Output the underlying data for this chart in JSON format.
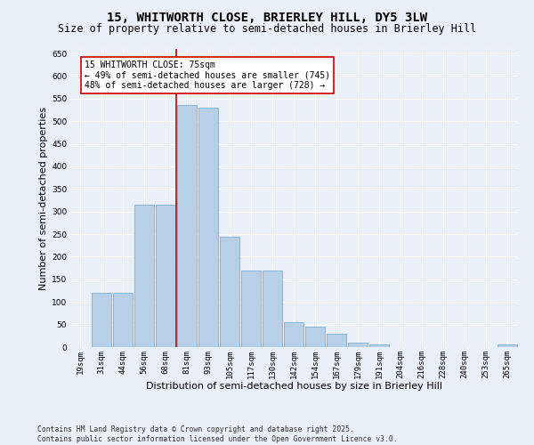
{
  "title": "15, WHITWORTH CLOSE, BRIERLEY HILL, DY5 3LW",
  "subtitle": "Size of property relative to semi-detached houses in Brierley Hill",
  "xlabel": "Distribution of semi-detached houses by size in Brierley Hill",
  "ylabel": "Number of semi-detached properties",
  "categories": [
    "19sqm",
    "31sqm",
    "44sqm",
    "56sqm",
    "68sqm",
    "81sqm",
    "93sqm",
    "105sqm",
    "117sqm",
    "130sqm",
    "142sqm",
    "154sqm",
    "167sqm",
    "179sqm",
    "191sqm",
    "204sqm",
    "216sqm",
    "228sqm",
    "240sqm",
    "253sqm",
    "265sqm"
  ],
  "values": [
    0,
    120,
    120,
    315,
    315,
    535,
    530,
    245,
    170,
    170,
    55,
    45,
    30,
    10,
    5,
    0,
    0,
    0,
    0,
    0,
    5
  ],
  "bar_color": "#b8cfe8",
  "bar_edge_color": "#7aadd4",
  "vline_pos": 4.5,
  "vline_color": "#cc0000",
  "annotation_text": "15 WHITWORTH CLOSE: 75sqm\n← 49% of semi-detached houses are smaller (745)\n48% of semi-detached houses are larger (728) →",
  "ylim": [
    0,
    660
  ],
  "yticks": [
    0,
    50,
    100,
    150,
    200,
    250,
    300,
    350,
    400,
    450,
    500,
    550,
    600,
    650
  ],
  "footer": "Contains HM Land Registry data © Crown copyright and database right 2025.\nContains public sector information licensed under the Open Government Licence v3.0.",
  "bg_color": "#eaf0f8",
  "grid_color": "#ffffff",
  "title_fontsize": 10,
  "subtitle_fontsize": 8.5,
  "tick_fontsize": 6.5,
  "ylabel_fontsize": 8,
  "xlabel_fontsize": 8,
  "ann_fontsize": 7,
  "footer_fontsize": 5.8
}
